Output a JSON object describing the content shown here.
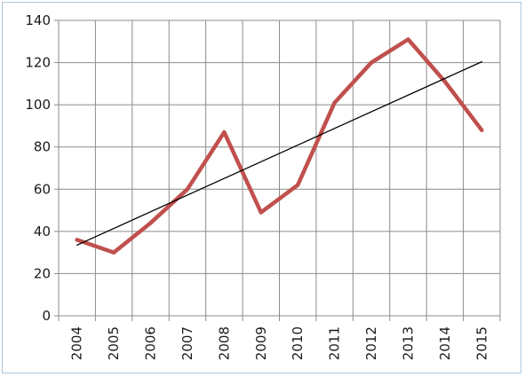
{
  "chart_data": {
    "type": "line",
    "title": "",
    "xlabel": "",
    "ylabel": "",
    "categories": [
      "2004",
      "2005",
      "2006",
      "2007",
      "2008",
      "2009",
      "2010",
      "2011",
      "2012",
      "2013",
      "2014",
      "2015"
    ],
    "series": [
      {
        "values": [
          36,
          30,
          44,
          60,
          87,
          49,
          62,
          101,
          120,
          131,
          111,
          88
        ],
        "color": "#c0504d"
      },
      {
        "type": "trendline",
        "values": [
          33.5,
          41.4,
          49.3,
          57.2,
          65.1,
          73.0,
          80.9,
          88.8,
          96.7,
          104.6,
          112.5,
          120.4
        ],
        "color": "#000000"
      }
    ],
    "ylim": [
      0,
      140
    ],
    "yticks": [
      0,
      20,
      40,
      60,
      80,
      100,
      120,
      140
    ],
    "grid": true,
    "legend": "none"
  }
}
